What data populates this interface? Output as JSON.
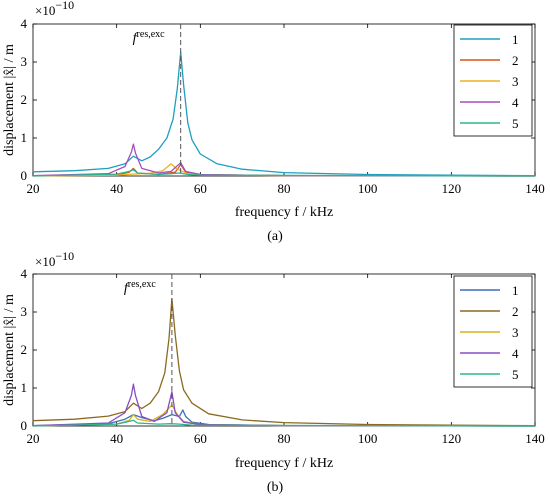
{
  "figure": {
    "panels": [
      {
        "caption": "(a)",
        "multiplier": "×10",
        "multiplier_exp": "−10",
        "annotation_base": "f",
        "annotation_sup": "res,exc",
        "xlabel": "frequency f / kHz",
        "ylabel": "displacement |x̂| / m"
      },
      {
        "caption": "(b)",
        "multiplier": "×10",
        "multiplier_exp": "−10",
        "annotation_base": "f",
        "annotation_sup": "res,exc",
        "xlabel": "frequency f / kHz",
        "ylabel": "displacement |x̂| / m"
      }
    ]
  },
  "chart_data": [
    {
      "type": "line",
      "panel": "(a)",
      "xlabel": "frequency f / kHz",
      "ylabel": "displacement |x̂| / m",
      "xlim": [
        20,
        140
      ],
      "ylim": [
        0,
        4
      ],
      "y_multiplier": "1e-10",
      "xticks": [
        20,
        40,
        60,
        80,
        100,
        120,
        140
      ],
      "yticks": [
        0,
        1,
        2,
        3,
        4
      ],
      "grid": false,
      "legend_position": "top-right",
      "marker_line": {
        "x": 55.3,
        "label": "f res,exc",
        "style": "dashed"
      },
      "series": [
        {
          "name": "1",
          "color": "#1f9fbf",
          "points": [
            [
              20,
              0.11
            ],
            [
              30,
              0.14
            ],
            [
              38,
              0.2
            ],
            [
              42,
              0.32
            ],
            [
              44,
              0.52
            ],
            [
              46,
              0.4
            ],
            [
              48,
              0.5
            ],
            [
              50,
              0.7
            ],
            [
              52,
              1.0
            ],
            [
              53.5,
              1.5
            ],
            [
              54.5,
              2.3
            ],
            [
              55.3,
              3.26
            ],
            [
              56,
              2.4
            ],
            [
              57,
              1.4
            ],
            [
              58,
              0.95
            ],
            [
              60,
              0.58
            ],
            [
              64,
              0.32
            ],
            [
              70,
              0.18
            ],
            [
              80,
              0.09
            ],
            [
              100,
              0.04
            ],
            [
              120,
              0.02
            ],
            [
              140,
              0.01
            ]
          ]
        },
        {
          "name": "2",
          "color": "#d95319",
          "points": [
            [
              20,
              0.01
            ],
            [
              40,
              0.03
            ],
            [
              43,
              0.1
            ],
            [
              44,
              0.2
            ],
            [
              45,
              0.08
            ],
            [
              50,
              0.04
            ],
            [
              54,
              0.1
            ],
            [
              55.3,
              0.3
            ],
            [
              56.5,
              0.1
            ],
            [
              60,
              0.04
            ],
            [
              80,
              0.01
            ],
            [
              140,
              0.0
            ]
          ]
        },
        {
          "name": "3",
          "color": "#edb120",
          "points": [
            [
              20,
              0.0
            ],
            [
              40,
              0.02
            ],
            [
              44,
              0.05
            ],
            [
              48,
              0.07
            ],
            [
              51,
              0.14
            ],
            [
              53,
              0.32
            ],
            [
              54,
              0.22
            ],
            [
              55.3,
              0.14
            ],
            [
              57,
              0.06
            ],
            [
              60,
              0.03
            ],
            [
              80,
              0.01
            ],
            [
              140,
              0.0
            ]
          ]
        },
        {
          "name": "4",
          "color": "#a64dbf",
          "points": [
            [
              20,
              0.01
            ],
            [
              38,
              0.06
            ],
            [
              42,
              0.25
            ],
            [
              43.5,
              0.62
            ],
            [
              44,
              0.84
            ],
            [
              44.5,
              0.6
            ],
            [
              46,
              0.2
            ],
            [
              50,
              0.08
            ],
            [
              53,
              0.12
            ],
            [
              55.3,
              0.35
            ],
            [
              56.5,
              0.12
            ],
            [
              60,
              0.04
            ],
            [
              80,
              0.01
            ],
            [
              140,
              0.0
            ]
          ]
        },
        {
          "name": "5",
          "color": "#2bb58f",
          "points": [
            [
              20,
              0.0
            ],
            [
              40,
              0.05
            ],
            [
              43,
              0.12
            ],
            [
              44,
              0.16
            ],
            [
              45,
              0.08
            ],
            [
              50,
              0.04
            ],
            [
              53,
              0.06
            ],
            [
              55,
              0.08
            ],
            [
              57,
              0.04
            ],
            [
              60,
              0.02
            ],
            [
              140,
              0.0
            ]
          ]
        }
      ]
    },
    {
      "type": "line",
      "panel": "(b)",
      "xlabel": "frequency f / kHz",
      "ylabel": "displacement |x̂| / m",
      "xlim": [
        20,
        140
      ],
      "ylim": [
        0,
        4
      ],
      "y_multiplier": "1e-10",
      "xticks": [
        20,
        40,
        60,
        80,
        100,
        120,
        140
      ],
      "yticks": [
        0,
        1,
        2,
        3,
        4
      ],
      "grid": false,
      "legend_position": "top-right",
      "marker_line": {
        "x": 53.2,
        "label": "f res,exc",
        "style": "dashed"
      },
      "series": [
        {
          "name": "1",
          "color": "#3a6fbf",
          "points": [
            [
              20,
              0.01
            ],
            [
              38,
              0.06
            ],
            [
              42,
              0.18
            ],
            [
              44,
              0.3
            ],
            [
              46,
              0.22
            ],
            [
              49,
              0.14
            ],
            [
              51,
              0.2
            ],
            [
              53.2,
              0.3
            ],
            [
              55,
              0.25
            ],
            [
              55.8,
              0.42
            ],
            [
              56.5,
              0.25
            ],
            [
              58,
              0.1
            ],
            [
              62,
              0.04
            ],
            [
              80,
              0.01
            ],
            [
              140,
              0.0
            ]
          ]
        },
        {
          "name": "2",
          "color": "#8b6a1f",
          "points": [
            [
              20,
              0.14
            ],
            [
              30,
              0.18
            ],
            [
              38,
              0.26
            ],
            [
              42,
              0.38
            ],
            [
              44,
              0.6
            ],
            [
              46,
              0.46
            ],
            [
              48,
              0.6
            ],
            [
              50,
              0.9
            ],
            [
              51.5,
              1.4
            ],
            [
              52.5,
              2.3
            ],
            [
              53.2,
              3.35
            ],
            [
              54,
              2.4
            ],
            [
              55,
              1.45
            ],
            [
              56,
              0.95
            ],
            [
              58,
              0.6
            ],
            [
              62,
              0.32
            ],
            [
              70,
              0.16
            ],
            [
              80,
              0.09
            ],
            [
              100,
              0.04
            ],
            [
              120,
              0.02
            ],
            [
              140,
              0.01
            ]
          ]
        },
        {
          "name": "3",
          "color": "#d4b41a",
          "points": [
            [
              20,
              0.0
            ],
            [
              40,
              0.05
            ],
            [
              43,
              0.15
            ],
            [
              44,
              0.3
            ],
            [
              45,
              0.18
            ],
            [
              48,
              0.12
            ],
            [
              51,
              0.3
            ],
            [
              53.2,
              0.55
            ],
            [
              54.5,
              0.3
            ],
            [
              56,
              0.12
            ],
            [
              60,
              0.04
            ],
            [
              80,
              0.01
            ],
            [
              140,
              0.0
            ]
          ]
        },
        {
          "name": "4",
          "color": "#8a4dbf",
          "points": [
            [
              20,
              0.01
            ],
            [
              38,
              0.08
            ],
            [
              42,
              0.35
            ],
            [
              43.5,
              0.8
            ],
            [
              44,
              1.1
            ],
            [
              44.5,
              0.8
            ],
            [
              46,
              0.25
            ],
            [
              49,
              0.12
            ],
            [
              52,
              0.35
            ],
            [
              53.2,
              0.9
            ],
            [
              54,
              0.35
            ],
            [
              56,
              0.1
            ],
            [
              60,
              0.04
            ],
            [
              80,
              0.01
            ],
            [
              140,
              0.0
            ]
          ]
        },
        {
          "name": "5",
          "color": "#2bb58f",
          "points": [
            [
              20,
              0.0
            ],
            [
              40,
              0.05
            ],
            [
              43,
              0.12
            ],
            [
              44,
              0.15
            ],
            [
              45,
              0.08
            ],
            [
              50,
              0.05
            ],
            [
              53,
              0.06
            ],
            [
              55,
              0.05
            ],
            [
              58,
              0.02
            ],
            [
              140,
              0.0
            ]
          ]
        }
      ]
    }
  ]
}
